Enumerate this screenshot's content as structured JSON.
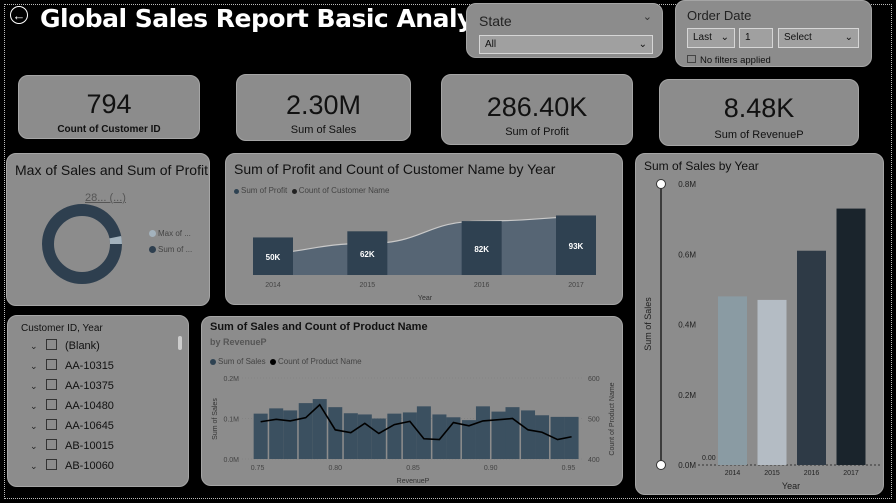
{
  "header": {
    "title": "Global Sales Report  Basic Analytics"
  },
  "state_slicer": {
    "title": "State",
    "value": "All"
  },
  "date_slicer": {
    "title": "Order Date",
    "relative": "Last",
    "count": "1",
    "unit": "Select",
    "status": "No filters applied"
  },
  "kpis": [
    {
      "value": "794",
      "label": "Count of Customer ID"
    },
    {
      "value": "2.30M",
      "label": "Sum of Sales"
    },
    {
      "value": "286.40K",
      "label": "Sum of Profit"
    },
    {
      "value": "8.48K",
      "label": "Sum of RevenueP"
    }
  ],
  "donut": {
    "title": "Max of Sales and Sum of Profit",
    "center_label": "28... (...)",
    "legend": [
      "Max of ...",
      "Sum of ..."
    ],
    "colors": [
      "#a3b2bd",
      "#2e3f4f"
    ]
  },
  "profit_year": {
    "title": "Sum of Profit and Count of Customer Name by Year",
    "legend": [
      "Sum of Profit",
      "Count of Customer Name"
    ],
    "xlabel": "Year"
  },
  "customer_list": {
    "header": "Customer ID, Year",
    "items": [
      "(Blank)",
      "AA-10315",
      "AA-10375",
      "AA-10480",
      "AA-10645",
      "AB-10015",
      "AB-10060"
    ]
  },
  "sales_product": {
    "title": "Sum of Sales and Count of Product Name",
    "subtitle": "by RevenueP",
    "legend": [
      "Sum of Sales",
      "Count of Product Name"
    ],
    "xlabel": "RevenueP",
    "ylabel_left": "Sum of Sales",
    "ylabel_right": "Count of Product Name"
  },
  "sales_year": {
    "title": "Sum of Sales by Year",
    "ylabel": "Sum of Sales",
    "xlabel": "Year"
  },
  "chart_data": [
    {
      "type": "area",
      "title": "Sum of Profit and Count of Customer Name by Year",
      "categories": [
        "2014",
        "2015",
        "2016",
        "2017"
      ],
      "series": [
        {
          "name": "Sum of Profit",
          "values": [
            50,
            62,
            82,
            93
          ],
          "labels": [
            "50K",
            "62K",
            "82K",
            "93K"
          ]
        },
        {
          "name": "Count of Customer Name",
          "values": [
            595,
            640,
            740,
            760
          ]
        }
      ],
      "xlabel": "Year"
    },
    {
      "type": "pie",
      "title": "Max of Sales and Sum of Profit",
      "slices": [
        {
          "name": "Max of ...",
          "value": 5
        },
        {
          "name": "Sum of ...",
          "value": 95
        }
      ]
    },
    {
      "type": "bar",
      "title": "Sum of Sales and Count of Product Name",
      "xlabel": "RevenueP",
      "ylabel": "Sum of Sales",
      "y2label": "Count of Product Name",
      "ylim": [
        0,
        0.2
      ],
      "y2lim": [
        400,
        600
      ],
      "yticks": [
        "0.0M",
        "0.1M",
        "0.2M"
      ],
      "y2ticks": [
        "400",
        "500",
        "600"
      ],
      "xlim": [
        0.74,
        0.96
      ],
      "xticks": [
        "0.75",
        "0.80",
        "0.85",
        "0.90",
        "0.95"
      ],
      "x": [
        0.752,
        0.762,
        0.771,
        0.781,
        0.79,
        0.8,
        0.81,
        0.819,
        0.828,
        0.838,
        0.848,
        0.857,
        0.867,
        0.876,
        0.886,
        0.895,
        0.905,
        0.914,
        0.924,
        0.933,
        0.943,
        0.952
      ],
      "series": [
        {
          "name": "Sum of Sales",
          "values": [
            0.112,
            0.125,
            0.12,
            0.138,
            0.148,
            0.128,
            0.113,
            0.11,
            0.1,
            0.112,
            0.115,
            0.13,
            0.11,
            0.103,
            0.096,
            0.13,
            0.117,
            0.128,
            0.12,
            0.108,
            0.104,
            0.104
          ]
        },
        {
          "name": "Count of Product Name",
          "values": [
            492,
            498,
            494,
            502,
            534,
            472,
            465,
            488,
            463,
            485,
            493,
            450,
            448,
            490,
            482,
            494,
            497,
            500,
            472,
            466,
            448,
            455
          ]
        }
      ]
    },
    {
      "type": "bar",
      "title": "Sum of Sales by Year",
      "categories": [
        "2014",
        "2015",
        "2016",
        "2017"
      ],
      "values": [
        0.48,
        0.47,
        0.61,
        0.73
      ],
      "colors": [
        "#8a9ba3",
        "#b4bcc4",
        "#2e3a46",
        "#1a242c"
      ],
      "ylim": [
        0,
        0.8
      ],
      "yticks": [
        "0.0M",
        "0.2M",
        "0.4M",
        "0.6M",
        "0.8M"
      ],
      "xlabel": "Year",
      "ylabel": "Sum of Sales",
      "annotation": "0.00"
    }
  ]
}
